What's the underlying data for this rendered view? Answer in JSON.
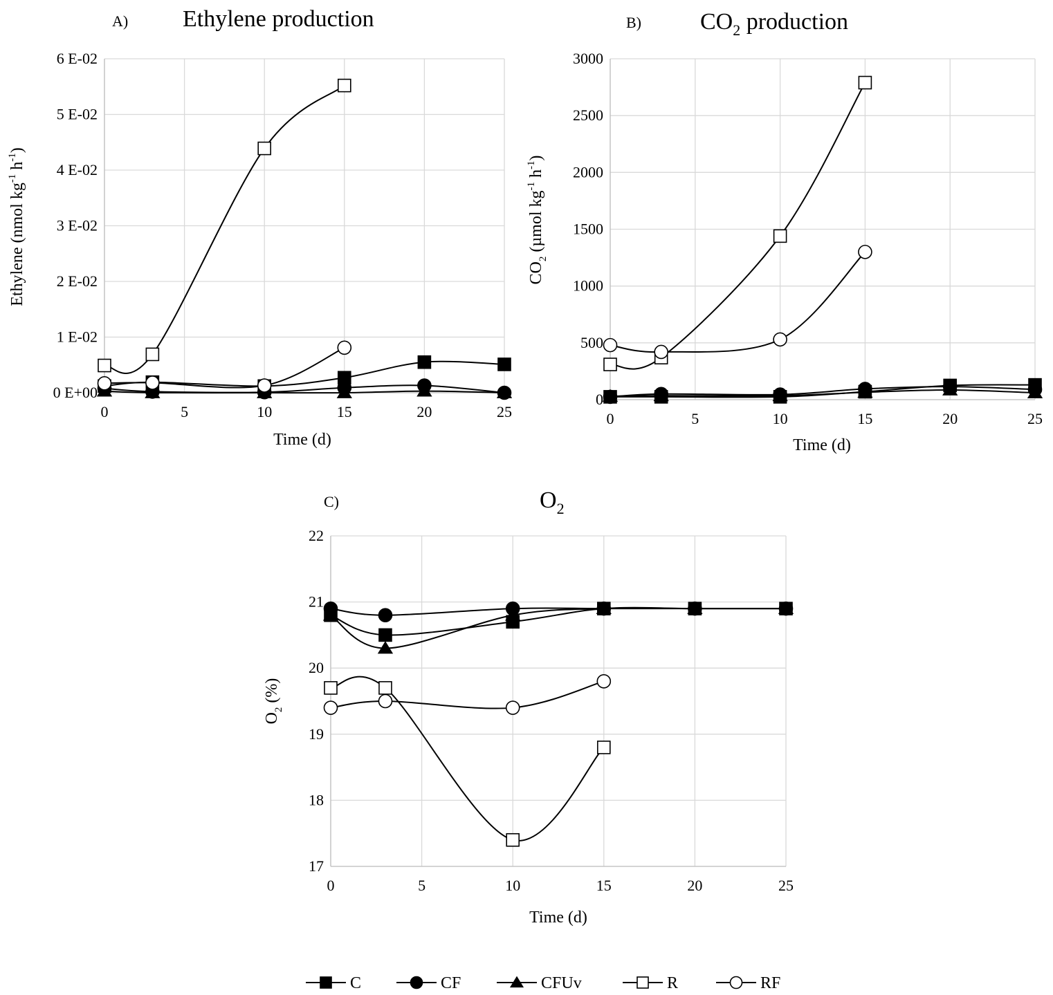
{
  "legend": {
    "position": "bottom-center",
    "items": [
      {
        "name": "C",
        "marker": "square",
        "fill": "filled"
      },
      {
        "name": "CF",
        "marker": "circle",
        "fill": "filled"
      },
      {
        "name": "CFUv",
        "marker": "triangle",
        "fill": "filled"
      },
      {
        "name": "R",
        "marker": "square",
        "fill": "open"
      },
      {
        "name": "RF",
        "marker": "circle",
        "fill": "open"
      }
    ]
  },
  "colors": {
    "series": "#000000",
    "grid": "#d9d9d9",
    "open_fill": "#ffffff"
  },
  "chart_data": [
    {
      "id": "ethylene",
      "panel_label": "A)",
      "title": "Ethylene production",
      "type": "line",
      "xlabel": "Time (d)",
      "ylabel_main": "Ethylene  (nmol kg",
      "ylabel_sup1": "-1",
      "ylabel_mid": " h",
      "ylabel_sup2": "-1",
      "ylabel_end": ")",
      "xlim": [
        0,
        25
      ],
      "ylim": [
        0,
        0.06
      ],
      "x_ticks": [
        0,
        5,
        10,
        15,
        20,
        25
      ],
      "x_tick_labels": [
        "0",
        "5",
        "10",
        "15",
        "20",
        "25"
      ],
      "y_ticks": [
        0,
        0.01,
        0.02,
        0.03,
        0.04,
        0.05,
        0.06
      ],
      "y_tick_labels": [
        "0 E+00",
        "1 E-02",
        "2 E-02",
        "3 E-02",
        "4 E-02",
        "5 E-02",
        "6 E-02"
      ],
      "grid": true,
      "series": [
        {
          "name": "C",
          "x": [
            0,
            3,
            10,
            15,
            20,
            25
          ],
          "y": [
            0.0012,
            0.0019,
            0.0012,
            0.0027,
            0.0055,
            0.0051
          ]
        },
        {
          "name": "CF",
          "x": [
            0,
            3,
            10,
            15,
            20,
            25
          ],
          "y": [
            0.0008,
            0.0002,
            0.0001,
            0.0009,
            0.0013,
            0.0
          ]
        },
        {
          "name": "CFUv",
          "x": [
            0,
            3,
            10,
            15,
            20,
            25
          ],
          "y": [
            0.0003,
            0.0,
            0.0,
            0.0,
            0.0003,
            0.0
          ]
        },
        {
          "name": "R",
          "x": [
            0,
            3,
            10,
            15
          ],
          "y": [
            0.0049,
            0.0069,
            0.0439,
            0.0552
          ]
        },
        {
          "name": "RF",
          "x": [
            0,
            3,
            10,
            15
          ],
          "y": [
            0.0017,
            0.0018,
            0.0013,
            0.0081
          ]
        }
      ]
    },
    {
      "id": "co2",
      "panel_label": "B)",
      "title_main": "CO",
      "title_sub": "2",
      "title_rest": " production",
      "type": "line",
      "xlabel": "Time (d)",
      "ylabel_main": "CO",
      "ylabel_sub": "2",
      "ylabel_rest": "  (µmol kg",
      "ylabel_sup1": "-1",
      "ylabel_mid": " h",
      "ylabel_sup2": "-1",
      "ylabel_end": ")",
      "xlim": [
        0,
        25
      ],
      "ylim": [
        0,
        3000
      ],
      "x_ticks": [
        0,
        5,
        10,
        15,
        20,
        25
      ],
      "x_tick_labels": [
        "0",
        "5",
        "10",
        "15",
        "20",
        "25"
      ],
      "y_ticks": [
        0,
        500,
        1000,
        1500,
        2000,
        2500,
        3000
      ],
      "y_tick_labels": [
        "0",
        "500",
        "1000",
        "1500",
        "2000",
        "2500",
        "3000"
      ],
      "grid": true,
      "series": [
        {
          "name": "C",
          "x": [
            0,
            3,
            10,
            15,
            20,
            25
          ],
          "y": [
            25,
            25,
            25,
            70,
            125,
            130
          ]
        },
        {
          "name": "CF",
          "x": [
            0,
            3,
            10,
            15,
            20,
            25
          ],
          "y": [
            25,
            50,
            45,
            95,
            115,
            90
          ]
        },
        {
          "name": "CFUv",
          "x": [
            0,
            3,
            10,
            15,
            20,
            25
          ],
          "y": [
            30,
            35,
            35,
            65,
            85,
            60
          ]
        },
        {
          "name": "R",
          "x": [
            0,
            3,
            10,
            15
          ],
          "y": [
            310,
            370,
            1440,
            2790
          ]
        },
        {
          "name": "RF",
          "x": [
            0,
            3,
            10,
            15
          ],
          "y": [
            480,
            420,
            530,
            1300
          ]
        }
      ]
    },
    {
      "id": "o2",
      "panel_label": "C)",
      "title_main": "O",
      "title_sub": "2",
      "type": "line",
      "xlabel": "Time (d)",
      "ylabel_main": "O",
      "ylabel_sub": "2",
      "ylabel_rest": "  (%)",
      "xlim": [
        0,
        25
      ],
      "ylim": [
        17,
        22
      ],
      "x_ticks": [
        0,
        5,
        10,
        15,
        20,
        25
      ],
      "x_tick_labels": [
        "0",
        "5",
        "10",
        "15",
        "20",
        "25"
      ],
      "y_ticks": [
        17,
        18,
        19,
        20,
        21,
        22
      ],
      "y_tick_labels": [
        "17",
        "18",
        "19",
        "20",
        "21",
        "22"
      ],
      "grid": true,
      "series": [
        {
          "name": "C",
          "x": [
            0,
            3,
            10,
            15,
            20,
            25
          ],
          "y": [
            20.8,
            20.5,
            20.7,
            20.9,
            20.9,
            20.9
          ]
        },
        {
          "name": "CF",
          "x": [
            0,
            3,
            10,
            15,
            20,
            25
          ],
          "y": [
            20.9,
            20.8,
            20.9,
            20.9,
            20.9,
            20.9
          ]
        },
        {
          "name": "CFUv",
          "x": [
            0,
            3,
            10,
            15,
            20,
            25
          ],
          "y": [
            20.8,
            20.3,
            20.8,
            20.9,
            20.9,
            20.9
          ]
        },
        {
          "name": "R",
          "x": [
            0,
            3,
            10,
            15
          ],
          "y": [
            19.7,
            19.7,
            17.4,
            18.8
          ]
        },
        {
          "name": "RF",
          "x": [
            0,
            3,
            10,
            15
          ],
          "y": [
            19.4,
            19.5,
            19.4,
            19.8
          ]
        }
      ]
    }
  ]
}
